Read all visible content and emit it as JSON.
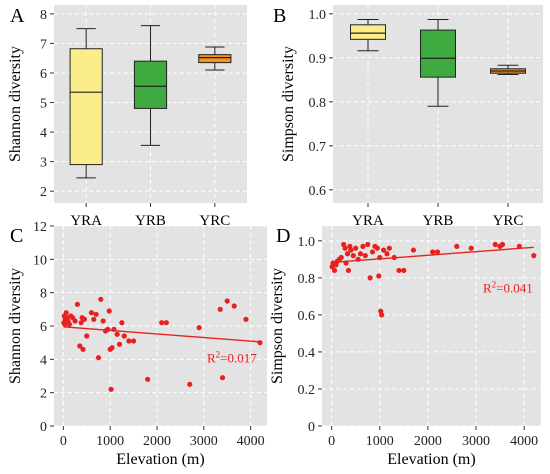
{
  "chart_data": [
    {
      "panel": "A",
      "type": "box",
      "ylabel": "Shannon diversity",
      "ylim": [
        1.6,
        8.3
      ],
      "yticks": [
        2,
        3,
        4,
        5,
        6,
        7,
        8
      ],
      "categories": [
        "YRA",
        "YRB",
        "YRC"
      ],
      "boxes": [
        {
          "min": 2.45,
          "q1": 2.9,
          "median": 5.35,
          "q3": 6.82,
          "max": 7.5,
          "color": "#fbee8a"
        },
        {
          "min": 3.55,
          "q1": 4.8,
          "median": 5.55,
          "q3": 6.4,
          "max": 7.6,
          "color": "#3faa3f"
        },
        {
          "min": 6.1,
          "q1": 6.35,
          "median": 6.52,
          "q3": 6.62,
          "max": 6.88,
          "color": "#f39322"
        }
      ],
      "grid": true
    },
    {
      "panel": "B",
      "type": "box",
      "ylabel": "Simpson diversity",
      "ylim": [
        0.57,
        1.02
      ],
      "yticks": [
        0.6,
        0.7,
        0.8,
        0.9,
        1.0
      ],
      "yticklabels": [
        "0.6",
        "0.7",
        "0.8",
        "0.9",
        "1.0"
      ],
      "categories": [
        "YRA",
        "YRB",
        "YRC"
      ],
      "boxes": [
        {
          "min": 0.916,
          "q1": 0.942,
          "median": 0.956,
          "q3": 0.975,
          "max": 0.987,
          "color": "#fbee8a"
        },
        {
          "min": 0.79,
          "q1": 0.856,
          "median": 0.899,
          "q3": 0.963,
          "max": 0.987,
          "color": "#3faa3f"
        },
        {
          "min": 0.862,
          "q1": 0.865,
          "median": 0.87,
          "q3": 0.875,
          "max": 0.883,
          "color": "#f39322"
        }
      ],
      "grid": true
    },
    {
      "panel": "C",
      "type": "scatter",
      "xlabel": "Elevation (m)",
      "ylabel": "Shannon diversity",
      "xlim": [
        -200,
        4350
      ],
      "ylim": [
        0,
        12
      ],
      "xticks": [
        0,
        1000,
        2000,
        3000,
        4000
      ],
      "yticks": [
        0,
        2,
        4,
        6,
        8,
        10,
        12
      ],
      "points": [
        [
          10,
          6.2
        ],
        [
          20,
          6.6
        ],
        [
          30,
          6.1
        ],
        [
          40,
          6.4
        ],
        [
          60,
          6.8
        ],
        [
          80,
          6.5
        ],
        [
          100,
          6.3
        ],
        [
          130,
          6.1
        ],
        [
          160,
          6.6
        ],
        [
          200,
          6.5
        ],
        [
          250,
          6.3
        ],
        [
          300,
          7.3
        ],
        [
          350,
          4.8
        ],
        [
          380,
          6.2
        ],
        [
          400,
          6.5
        ],
        [
          420,
          4.6
        ],
        [
          450,
          6.4
        ],
        [
          500,
          5.4
        ],
        [
          600,
          6.8
        ],
        [
          650,
          6.4
        ],
        [
          700,
          6.7
        ],
        [
          750,
          4.1
        ],
        [
          800,
          7.6
        ],
        [
          850,
          6.3
        ],
        [
          900,
          5.7
        ],
        [
          950,
          5.8
        ],
        [
          980,
          6.9
        ],
        [
          1000,
          4.6
        ],
        [
          1020,
          2.2
        ],
        [
          1040,
          4.7
        ],
        [
          1080,
          5.8
        ],
        [
          1150,
          5.5
        ],
        [
          1200,
          4.9
        ],
        [
          1250,
          6.2
        ],
        [
          1300,
          5.4
        ],
        [
          1400,
          5.1
        ],
        [
          1500,
          5.1
        ],
        [
          1800,
          2.8
        ],
        [
          2100,
          6.2
        ],
        [
          2200,
          6.2
        ],
        [
          2700,
          2.5
        ],
        [
          2900,
          5.9
        ],
        [
          3350,
          7.0
        ],
        [
          3400,
          2.9
        ],
        [
          3500,
          7.5
        ],
        [
          3650,
          7.2
        ],
        [
          3900,
          6.4
        ],
        [
          4200,
          5.0
        ]
      ],
      "fit": {
        "x": [
          0,
          4200
        ],
        "y": [
          5.95,
          5.05
        ]
      },
      "annotation": "R²=0.017",
      "color": "#e8201e",
      "grid": true
    },
    {
      "panel": "D",
      "type": "scatter",
      "xlabel": "Elevation (m)",
      "ylabel": "Simpson diversity",
      "xlim": [
        -200,
        4350
      ],
      "ylim": [
        0,
        1.08
      ],
      "xticks": [
        0,
        1000,
        2000,
        3000,
        4000
      ],
      "yticks": [
        0,
        0.2,
        0.4,
        0.6,
        0.8,
        1.0
      ],
      "yticklabels": [
        "0",
        "0.2",
        "0.4",
        "0.6",
        "0.8",
        "1.0"
      ],
      "points": [
        [
          10,
          0.86
        ],
        [
          30,
          0.88
        ],
        [
          60,
          0.84
        ],
        [
          90,
          0.87
        ],
        [
          120,
          0.89
        ],
        [
          160,
          0.9
        ],
        [
          200,
          0.91
        ],
        [
          250,
          0.98
        ],
        [
          280,
          0.96
        ],
        [
          300,
          0.88
        ],
        [
          330,
          0.93
        ],
        [
          350,
          0.84
        ],
        [
          380,
          0.97
        ],
        [
          400,
          0.95
        ],
        [
          450,
          0.92
        ],
        [
          500,
          0.96
        ],
        [
          550,
          0.9
        ],
        [
          600,
          0.93
        ],
        [
          650,
          0.97
        ],
        [
          700,
          0.92
        ],
        [
          750,
          0.98
        ],
        [
          800,
          0.8
        ],
        [
          850,
          0.94
        ],
        [
          900,
          0.97
        ],
        [
          950,
          0.96
        ],
        [
          980,
          0.81
        ],
        [
          1000,
          0.91
        ],
        [
          1020,
          0.62
        ],
        [
          1040,
          0.6
        ],
        [
          1080,
          0.95
        ],
        [
          1150,
          0.93
        ],
        [
          1200,
          0.96
        ],
        [
          1300,
          0.91
        ],
        [
          1400,
          0.84
        ],
        [
          1500,
          0.84
        ],
        [
          1700,
          0.95
        ],
        [
          2100,
          0.94
        ],
        [
          2200,
          0.94
        ],
        [
          2600,
          0.97
        ],
        [
          2900,
          0.96
        ],
        [
          3400,
          0.98
        ],
        [
          3500,
          0.97
        ],
        [
          3550,
          0.98
        ],
        [
          3900,
          0.97
        ],
        [
          4200,
          0.92
        ]
      ],
      "fit": {
        "x": [
          0,
          4200
        ],
        "y": [
          0.883,
          0.965
        ]
      },
      "annotation": "R²=0.041",
      "color": "#e8201e",
      "grid": true
    }
  ]
}
